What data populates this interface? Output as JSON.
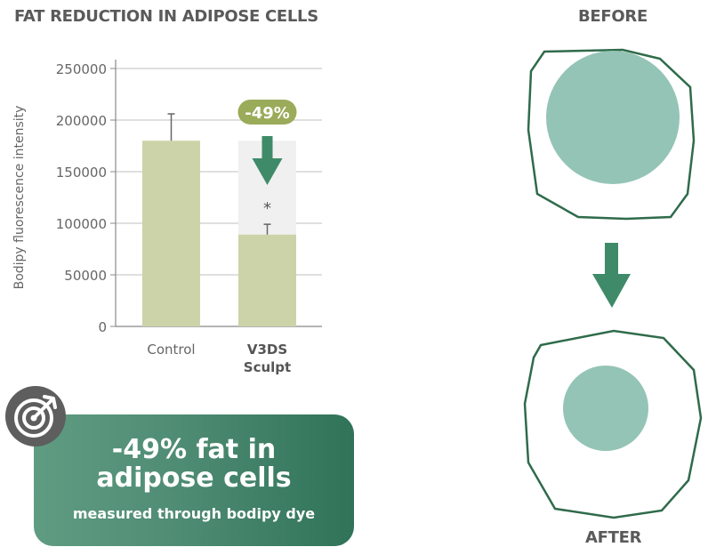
{
  "titles": {
    "chart": "FAT REDUCTION IN ADIPOSE CELLS",
    "before": "BEFORE",
    "after": "AFTER"
  },
  "summary": {
    "headline": "-49% fat in adipose cells",
    "subline": "measured through bodipy dye"
  },
  "colors": {
    "bar": "#cdd3a8",
    "callout": "#9aab5a",
    "arrow": "#3f8a68",
    "cell_outline": "#2f6b4b",
    "nucleus": "#94c4b6",
    "reduction_bg": "#f0f0f0"
  },
  "icons": {
    "target": "target-icon",
    "down_arrow": "arrow-down-icon"
  },
  "chart_data": {
    "type": "bar",
    "title": "FAT REDUCTION IN ADIPOSE CELLS",
    "xlabel": "",
    "ylabel": "Bodipy fluorescence intensity",
    "ylim": [
      0,
      250000
    ],
    "yticks": [
      0,
      50000,
      100000,
      150000,
      200000,
      250000
    ],
    "ytick_labels": [
      "0",
      "50000",
      "100000",
      "150000",
      "200000",
      "250000"
    ],
    "grid": true,
    "categories": [
      "Control",
      "V3DS Sculpt"
    ],
    "category_lines": [
      [
        "Control"
      ],
      [
        "V3DS",
        "Sculpt"
      ]
    ],
    "category_bold": [
      false,
      true
    ],
    "values": [
      180000,
      89000
    ],
    "errors": [
      26000,
      10000
    ],
    "reduction_from": 180000,
    "callout": "-49%",
    "significance": "*"
  }
}
